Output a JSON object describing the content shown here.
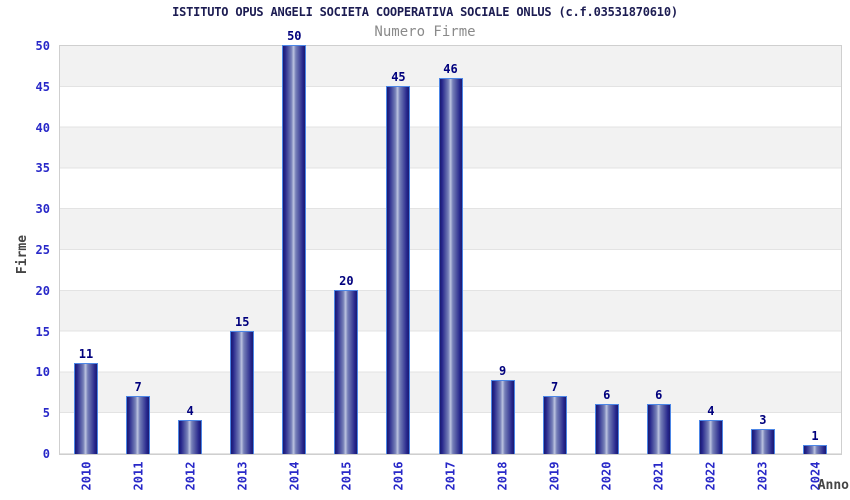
{
  "header": {
    "title": "ISTITUTO OPUS ANGELI SOCIETA COOPERATIVA SOCIALE ONLUS (c.f.03531870610)",
    "subtitle": "Numero Firme"
  },
  "chart_data": {
    "type": "bar",
    "title": "Numero Firme",
    "categories": [
      "2010",
      "2011",
      "2012",
      "2013",
      "2014",
      "2015",
      "2016",
      "2017",
      "2018",
      "2019",
      "2020",
      "2021",
      "2022",
      "2023",
      "2024"
    ],
    "values": [
      11,
      7,
      4,
      15,
      50,
      20,
      45,
      46,
      9,
      7,
      6,
      6,
      4,
      3,
      1
    ],
    "xlabel": "Anno",
    "ylabel": "Firme",
    "ylim": [
      0,
      50
    ],
    "yticks": [
      0,
      5,
      10,
      15,
      20,
      25,
      30,
      35,
      40,
      45,
      50
    ],
    "grid": "horizontal alternating bands every 5 units, gray band at 45-50",
    "legend": "none",
    "bar_labels_shown": true
  },
  "colors": {
    "title": "#1c1c52",
    "subtitle": "#8a8a8a",
    "tick_label": "#2828c8",
    "value_label": "#00007d",
    "axis_title": "#454545",
    "plot_border": "#cfcfcf",
    "band": "#f2f2f2",
    "grid_line": "#e3e3e3",
    "bar_border": "#4c86e6",
    "bar_dark": "#1b1b70",
    "bar_mid1": "#24248a",
    "bar_mid2": "#7680b8",
    "bar_light": "#bcc3e0"
  }
}
